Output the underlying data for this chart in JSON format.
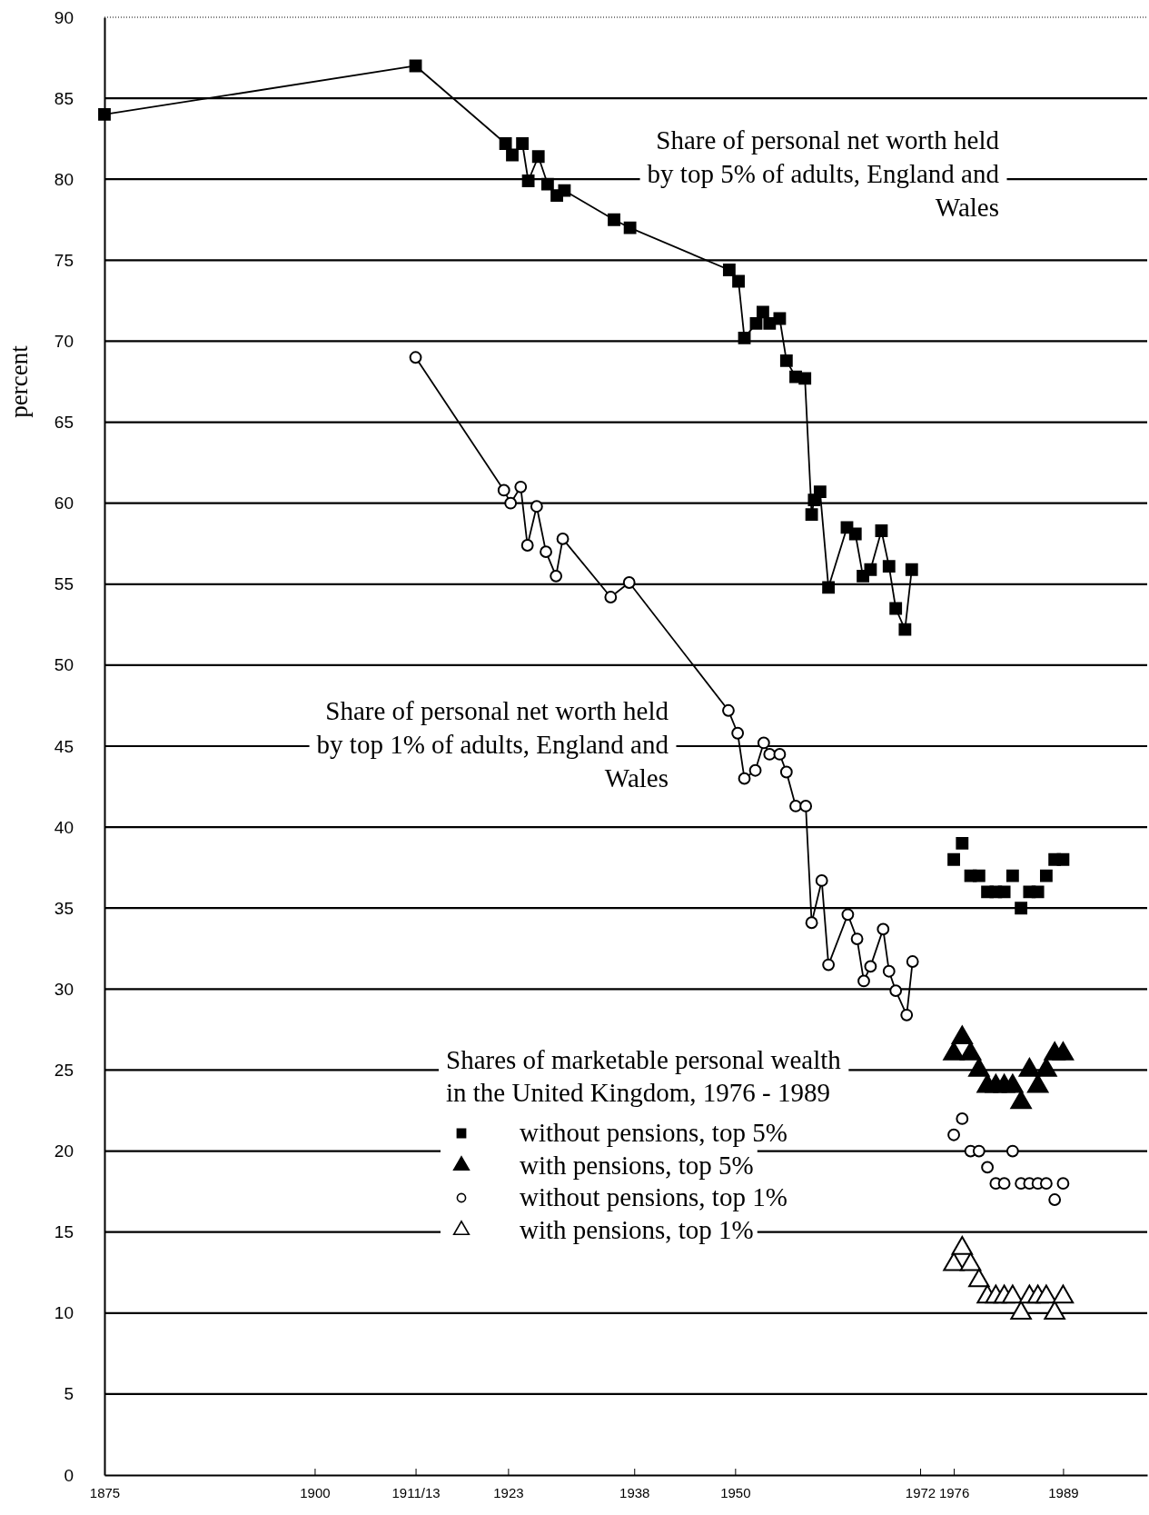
{
  "chart_data": {
    "type": "line",
    "ylabel": "percent",
    "legend_title": "Shares of marketable personal wealth in the United Kingdom, 1976 - 1989",
    "legend": "bottom",
    "grid": "y",
    "line_style": "solid",
    "xlim": [
      1875,
      1999
    ],
    "xticks": [
      1875,
      1900,
      {
        "value": 1912,
        "label": "1911/13"
      },
      1923,
      1938,
      1950,
      1972,
      1976,
      1989
    ],
    "ylim": [
      0,
      90
    ],
    "yticks": [
      0,
      5,
      10,
      15,
      20,
      25,
      30,
      35,
      40,
      45,
      50,
      55,
      60,
      65,
      70,
      75,
      80,
      85,
      90
    ],
    "series": [
      {
        "name": "Share of personal net worth held by top 5% of adults, England and Wales",
        "marker": "square",
        "color": "#000000",
        "x": [
          1875,
          1912,
          1922.7,
          1923.5,
          1924.7,
          1925.4,
          1926.6,
          1927.7,
          1928.8,
          1929.7,
          1935.6,
          1937.5,
          1949.3,
          1950.4,
          1951.1,
          1952.5,
          1953.3,
          1954.1,
          1955.3,
          1956.1,
          1957.2,
          1958.3,
          1959.1,
          1959.4,
          1960.1,
          1961.1,
          1963.3,
          1964.3,
          1965.2,
          1966.1,
          1967.4,
          1968.3,
          1969.1,
          1970.2,
          1971
        ],
        "values": [
          84,
          87,
          82.2,
          81.5,
          82.2,
          79.9,
          81.4,
          79.7,
          79,
          79.3,
          77.5,
          77,
          74.4,
          73.7,
          70.2,
          71.1,
          71.8,
          71.1,
          71.4,
          68.8,
          67.8,
          67.7,
          59.3,
          60.2,
          60.7,
          54.8,
          58.5,
          58.1,
          55.5,
          55.9,
          58.3,
          56.1,
          53.5,
          52.2,
          55.9
        ]
      },
      {
        "name": "Share of personal net worth held by top 1% of adults, England and Wales",
        "marker": "circle",
        "color": "#000000",
        "x": [
          1912,
          1922.5,
          1923.3,
          1924.5,
          1925.3,
          1926.4,
          1927.5,
          1928.7,
          1929.5,
          1935.2,
          1937.4,
          1949.2,
          1950.3,
          1951.1,
          1952.4,
          1953.4,
          1954.1,
          1955.3,
          1956.1,
          1957.2,
          1958.4,
          1959.1,
          1960.3,
          1961.1,
          1963.4,
          1964.5,
          1965.3,
          1966.1,
          1967.6,
          1968.3,
          1969.1,
          1970.4,
          1971.1
        ],
        "values": [
          69,
          60.8,
          60,
          61,
          57.4,
          59.8,
          57,
          55.5,
          57.8,
          54.2,
          55.1,
          47.2,
          45.8,
          43,
          43.5,
          45.2,
          44.5,
          44.5,
          43.4,
          41.3,
          41.3,
          34.1,
          36.7,
          31.5,
          34.6,
          33.1,
          30.5,
          31.4,
          33.7,
          31.1,
          29.9,
          28.4,
          31.7
        ]
      },
      {
        "name": "without pensions, top 5%",
        "type": "scatter",
        "marker": "square",
        "color": "#000000",
        "x": [
          1976,
          1977,
          1978,
          1979,
          1980,
          1981,
          1982,
          1983,
          1984,
          1985,
          1986,
          1987,
          1988,
          1989
        ],
        "values": [
          38,
          39,
          37,
          37,
          36,
          36,
          36,
          37,
          35,
          36,
          36,
          37,
          38,
          38
        ]
      },
      {
        "name": "with pensions, top 5%",
        "type": "scatter",
        "marker": "triangle",
        "color": "#000000",
        "x": [
          1976,
          1977,
          1978,
          1979,
          1980,
          1981,
          1982,
          1983,
          1984,
          1985,
          1986,
          1987,
          1988,
          1989
        ],
        "values": [
          26,
          27,
          26,
          25,
          24,
          24,
          24,
          24,
          23,
          25,
          24,
          25,
          26,
          26
        ]
      },
      {
        "name": "without pensions, top 1%",
        "type": "scatter",
        "marker": "circle",
        "color": "#000000",
        "x": [
          1976,
          1977,
          1978,
          1979,
          1980,
          1981,
          1982,
          1983,
          1984,
          1985,
          1986,
          1987,
          1988,
          1989
        ],
        "values": [
          21,
          22,
          20,
          20,
          19,
          18,
          18,
          20,
          18,
          18,
          18,
          18,
          17,
          18
        ]
      },
      {
        "name": "with pensions, top 1%",
        "type": "scatter",
        "marker": "triangle",
        "color": "#ffffff",
        "x": [
          1976,
          1977,
          1978,
          1979,
          1980,
          1981,
          1982,
          1983,
          1984,
          1985,
          1986,
          1987,
          1988,
          1989
        ],
        "values": [
          13,
          14,
          13,
          12,
          11,
          11,
          11,
          11,
          10,
          11,
          11,
          11,
          10,
          11
        ]
      }
    ]
  }
}
